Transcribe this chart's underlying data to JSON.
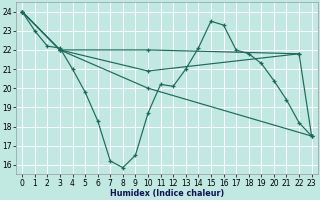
{
  "xlabel": "Humidex (Indice chaleur)",
  "bg_color": "#c2e8e2",
  "line_color": "#1a6b5a",
  "xlim": [
    -0.5,
    23.5
  ],
  "ylim": [
    15.5,
    24.5
  ],
  "yticks": [
    16,
    17,
    18,
    19,
    20,
    21,
    22,
    23,
    24
  ],
  "xticks": [
    0,
    1,
    2,
    3,
    4,
    5,
    6,
    7,
    8,
    9,
    10,
    11,
    12,
    13,
    14,
    15,
    16,
    17,
    18,
    19,
    20,
    21,
    22,
    23
  ],
  "line1_x": [
    0,
    1,
    2,
    3,
    4,
    5,
    6,
    7,
    8,
    9,
    10,
    11,
    12,
    13,
    14,
    15,
    16,
    17,
    18,
    19,
    20,
    21,
    22,
    23
  ],
  "line1_y": [
    24,
    23,
    22.2,
    22.1,
    21.0,
    19.8,
    18.3,
    16.2,
    15.85,
    16.5,
    18.7,
    20.2,
    20.1,
    21.0,
    22.1,
    23.5,
    23.3,
    22.0,
    21.8,
    21.3,
    20.4,
    19.4,
    18.2,
    17.5
  ],
  "line2_x": [
    0,
    3,
    10,
    22
  ],
  "line2_y": [
    24,
    22.0,
    22.0,
    21.8
  ],
  "line3_x": [
    0,
    3,
    10,
    22,
    23
  ],
  "line3_y": [
    24,
    22.0,
    20.9,
    21.8,
    17.5
  ],
  "line4_x": [
    0,
    3,
    10,
    23
  ],
  "line4_y": [
    24,
    22.0,
    20.0,
    17.5
  ]
}
